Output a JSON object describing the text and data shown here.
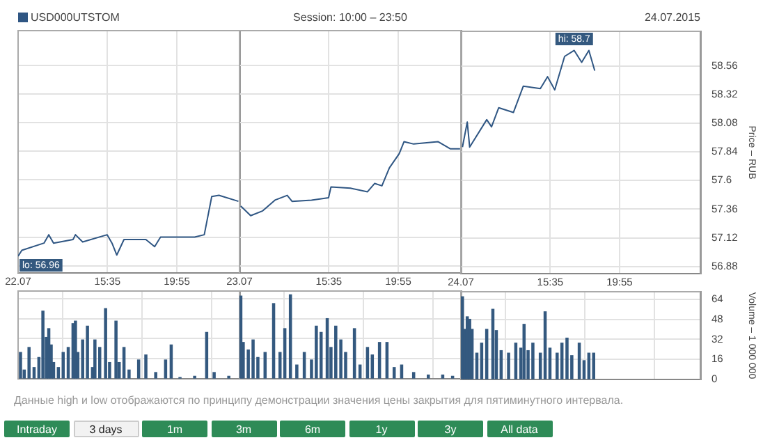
{
  "chart_data": [
    {
      "type": "line",
      "legend": "top left",
      "grid": true,
      "tick_labels": "x",
      "xlim": [
        "2015-07-22T10:00",
        "2015-07-22T23:50"
      ],
      "xticks": [
        {
          "value": "2015-07-22T10:00",
          "label": "22.07"
        },
        {
          "value": "2015-07-22T15:35",
          "label": "15:35"
        },
        {
          "value": "2015-07-22T19:55",
          "label": "19:55"
        }
      ],
      "ylim": [
        56.82,
        58.85
      ],
      "yticks": [
        56.88,
        57.12,
        57.36,
        57.6,
        57.84,
        58.08,
        58.32,
        58.56
      ],
      "annotations": [
        {
          "text": "lo: 56.96",
          "x": "2015-07-22T10:00",
          "y": 56.96
        }
      ],
      "series": [
        {
          "name": "USD000UTSTOM",
          "color": "#2f5683",
          "x": [
            "2015-07-22T10:00",
            "2015-07-22T10:14",
            "2015-07-22T11:37",
            "2015-07-22T11:55",
            "2015-07-22T12:13",
            "2015-07-22T13:26",
            "2015-07-22T13:35",
            "2015-07-22T14:02",
            "2015-07-22T15:34",
            "2015-07-22T15:52",
            "2015-07-22T16:10",
            "2015-07-22T16:37",
            "2015-07-22T17:59",
            "2015-07-22T18:32",
            "2015-07-22T18:54",
            "2015-07-22T21:02",
            "2015-07-22T21:38",
            "2015-07-22T22:06",
            "2015-07-22T22:33",
            "2015-07-22T23:46"
          ],
          "values": [
            56.96,
            57.01,
            57.07,
            57.14,
            57.07,
            57.1,
            57.14,
            57.08,
            57.14,
            57.07,
            56.97,
            57.1,
            57.1,
            57.04,
            57.12,
            57.12,
            57.14,
            57.46,
            57.47,
            57.42
          ]
        }
      ]
    },
    {
      "type": "line",
      "title": "Session: 10:00 – 23:50",
      "grid": true,
      "tick_labels": "x",
      "xlim": [
        "2015-07-23T10:00",
        "2015-07-23T23:50"
      ],
      "xticks": [
        {
          "value": "2015-07-23T10:00",
          "label": "23.07"
        },
        {
          "value": "2015-07-23T15:35",
          "label": "15:35"
        },
        {
          "value": "2015-07-23T19:55",
          "label": "19:55"
        }
      ],
      "ylim": [
        56.82,
        58.85
      ],
      "yticks": [
        56.88,
        57.12,
        57.36,
        57.6,
        57.84,
        58.08,
        58.32,
        58.56
      ],
      "series": [
        {
          "color": "#2f5683",
          "x": [
            "2015-07-23T10:05",
            "2015-07-23T10:42",
            "2015-07-23T11:27",
            "2015-07-23T12:13",
            "2015-07-23T12:59",
            "2015-07-23T13:17",
            "2015-07-23T14:30",
            "2015-07-23T15:34",
            "2015-07-23T15:43",
            "2015-07-23T16:56",
            "2015-07-23T18:00",
            "2015-07-23T18:27",
            "2015-07-23T18:54",
            "2015-07-23T19:22",
            "2015-07-23T19:59",
            "2015-07-23T20:17",
            "2015-07-23T20:53",
            "2015-07-23T22:24",
            "2015-07-23T23:10",
            "2015-07-23T23:47"
          ],
          "values": [
            57.38,
            57.3,
            57.34,
            57.43,
            57.47,
            57.42,
            57.43,
            57.45,
            57.54,
            57.53,
            57.5,
            57.57,
            57.55,
            57.7,
            57.82,
            57.92,
            57.9,
            57.92,
            57.86,
            57.86
          ]
        }
      ]
    },
    {
      "type": "line",
      "subtitle": "24.07.2015",
      "ylabel": "Price – RUB",
      "grid": true,
      "xlim": [
        "2015-07-24T10:00",
        "2015-07-25T00:58"
      ],
      "xticks": [
        {
          "value": "2015-07-24T10:00",
          "label": "24.07"
        },
        {
          "value": "2015-07-24T15:35",
          "label": "15:35"
        },
        {
          "value": "2015-07-24T19:55",
          "label": "19:55"
        }
      ],
      "ylim": [
        56.82,
        58.85
      ],
      "yticks": [
        56.88,
        57.12,
        57.36,
        57.6,
        57.84,
        58.08,
        58.32,
        58.56
      ],
      "annotations": [
        {
          "text": "hi: 58.7",
          "x": "2015-07-24T17:05",
          "y": 58.7
        }
      ],
      "series": [
        {
          "color": "#2f5683",
          "x": [
            "2015-07-24T10:06",
            "2015-07-24T10:24",
            "2015-07-24T10:33",
            "2015-07-24T11:37",
            "2015-07-24T11:55",
            "2015-07-24T12:22",
            "2015-07-24T13:17",
            "2015-07-24T13:54",
            "2015-07-24T14:58",
            "2015-07-24T15:25",
            "2015-07-24T15:52",
            "2015-07-24T16:29",
            "2015-07-24T17:05",
            "2015-07-24T17:33",
            "2015-07-24T18:00",
            "2015-07-24T18:22"
          ],
          "values": [
            57.88,
            58.09,
            57.88,
            58.11,
            58.05,
            58.21,
            58.17,
            58.39,
            58.37,
            58.47,
            58.36,
            58.64,
            58.69,
            58.59,
            58.69,
            58.52
          ]
        }
      ]
    },
    {
      "type": "bar",
      "grid": true,
      "tick_labels": false,
      "xlim": [
        "2015-07-22T10:00",
        "2015-07-22T23:50"
      ],
      "xticks": [
        {
          "value": "2015-07-22T10:00",
          "label": null
        },
        {
          "value": "2015-07-22T15:35",
          "label": null
        },
        {
          "value": "2015-07-22T19:55",
          "label": null
        }
      ],
      "ylim": [
        0,
        70
      ],
      "yticks": [
        0,
        16,
        32,
        48,
        64
      ],
      "annotations": [
        "Данные high и low отображаются по принципу демонстрации значения цены закрытия для пятиминутного интервала."
      ],
      "series": [
        {
          "color": "#34597f",
          "x": [
            "2015-07-22T10:09",
            "2015-07-22T10:23",
            "2015-07-22T10:41",
            "2015-07-22T11:00",
            "2015-07-22T11:18",
            "2015-07-22T11:33",
            "2015-07-22T11:46",
            "2015-07-22T11:55",
            "2015-07-22T12:04",
            "2015-07-22T12:13",
            "2015-07-22T12:31",
            "2015-07-22T12:49",
            "2015-07-22T13:08",
            "2015-07-22T13:26",
            "2015-07-22T13:35",
            "2015-07-22T13:44",
            "2015-07-22T14:02",
            "2015-07-22T14:20",
            "2015-07-22T14:39",
            "2015-07-22T14:48",
            "2015-07-22T15:06",
            "2015-07-22T15:28",
            "2015-07-22T15:43",
            "2015-07-22T16:07",
            "2015-07-22T16:19",
            "2015-07-22T16:37",
            "2015-07-22T16:56",
            "2015-07-22T17:32",
            "2015-07-22T17:59",
            "2015-07-22T18:36",
            "2015-07-22T19:13",
            "2015-07-22T19:34",
            "2015-07-22T20:07",
            "2015-07-22T21:02",
            "2015-07-22T21:47",
            "2015-07-22T22:15",
            "2015-07-22T23:10"
          ],
          "values": [
            21,
            7,
            25,
            9,
            17,
            54,
            33,
            40,
            27,
            13,
            9,
            21,
            25,
            44,
            46,
            21,
            31,
            42,
            9,
            31,
            25,
            56,
            13,
            46,
            13,
            25,
            7,
            15,
            19,
            5,
            15,
            27,
            1,
            2,
            37,
            5,
            2
          ]
        }
      ]
    },
    {
      "type": "bar",
      "grid": true,
      "tick_labels": false,
      "xlim": [
        "2015-07-23T10:00",
        "2015-07-23T23:50"
      ],
      "xticks": [
        {
          "value": "2015-07-23T10:00",
          "label": null
        },
        {
          "value": "2015-07-23T15:35",
          "label": null
        },
        {
          "value": "2015-07-23T19:55",
          "label": null
        }
      ],
      "ylim": [
        0,
        70
      ],
      "yticks": [
        0,
        16,
        32,
        48,
        64
      ],
      "series": [
        {
          "color": "#34597f",
          "x": [
            "2015-07-23T10:05",
            "2015-07-23T10:14",
            "2015-07-23T10:33",
            "2015-07-23T10:51",
            "2015-07-23T11:09",
            "2015-07-23T11:36",
            "2015-07-23T12:08",
            "2015-07-23T12:32",
            "2015-07-23T12:50",
            "2015-07-23T13:11",
            "2015-07-23T13:35",
            "2015-07-23T14:03",
            "2015-07-23T14:30",
            "2015-07-23T14:48",
            "2015-07-23T15:06",
            "2015-07-23T15:29",
            "2015-07-23T15:43",
            "2015-07-23T16:01",
            "2015-07-23T16:20",
            "2015-07-23T16:38",
            "2015-07-23T17:11",
            "2015-07-23T17:32",
            "2015-07-23T18:00",
            "2015-07-23T18:18",
            "2015-07-23T18:45",
            "2015-07-23T19:13",
            "2015-07-23T19:40",
            "2015-07-23T20:08",
            "2015-07-23T20:53",
            "2015-07-23T21:48",
            "2015-07-23T22:42",
            "2015-07-23T23:19"
          ],
          "values": [
            66,
            29,
            23,
            31,
            17,
            21,
            60,
            21,
            40,
            67,
            11,
            21,
            15,
            42,
            37,
            48,
            25,
            42,
            31,
            21,
            40,
            11,
            25,
            19,
            29,
            29,
            9,
            11,
            5,
            3,
            3,
            2
          ]
        }
      ]
    },
    {
      "type": "bar",
      "ylabel": "Volume – 1 000 000",
      "grid": true,
      "tick_labels": "y",
      "xlim": [
        "2015-07-24T10:00",
        "2015-07-25T00:58"
      ],
      "xticks": [
        {
          "value": "2015-07-24T10:00",
          "label": null
        },
        {
          "value": "2015-07-24T15:35",
          "label": null
        },
        {
          "value": "2015-07-24T19:55",
          "label": null
        }
      ],
      "ylim": [
        0,
        70
      ],
      "yticks": [
        0,
        16,
        32,
        48,
        64
      ],
      "series": [
        {
          "color": "#34597f",
          "x": [
            "2015-07-24T10:06",
            "2015-07-24T10:15",
            "2015-07-24T10:24",
            "2015-07-24T10:33",
            "2015-07-24T10:42",
            "2015-07-24T11:00",
            "2015-07-24T11:18",
            "2015-07-24T11:37",
            "2015-07-24T12:00",
            "2015-07-24T12:13",
            "2015-07-24T12:31",
            "2015-07-24T12:59",
            "2015-07-24T13:26",
            "2015-07-24T13:45",
            "2015-07-24T13:57",
            "2015-07-24T14:12",
            "2015-07-24T14:30",
            "2015-07-24T14:58",
            "2015-07-24T15:16",
            "2015-07-24T15:34",
            "2015-07-24T16:01",
            "2015-07-24T16:19",
            "2015-07-24T16:38",
            "2015-07-24T16:56",
            "2015-07-24T17:24",
            "2015-07-24T17:42",
            "2015-07-24T18:00",
            "2015-07-24T18:18"
          ],
          "values": [
            66,
            40,
            50,
            48,
            40,
            21,
            29,
            40,
            56,
            39,
            23,
            21,
            29,
            25,
            44,
            23,
            29,
            21,
            54,
            25,
            21,
            29,
            33,
            19,
            29,
            15,
            21,
            21
          ]
        }
      ]
    },
    {
      "type": "other",
      "categories": [
        "Intraday",
        "3 days",
        "1m",
        "3m",
        "6m",
        "1y",
        "3y",
        "All data"
      ],
      "colors": [
        "#2e8b57",
        "#f2f2f2",
        "#2e8b57",
        "#2e8b57",
        "#2e8b57",
        "#2e8b57",
        "#2e8b57",
        "#2e8b57"
      ]
    }
  ]
}
